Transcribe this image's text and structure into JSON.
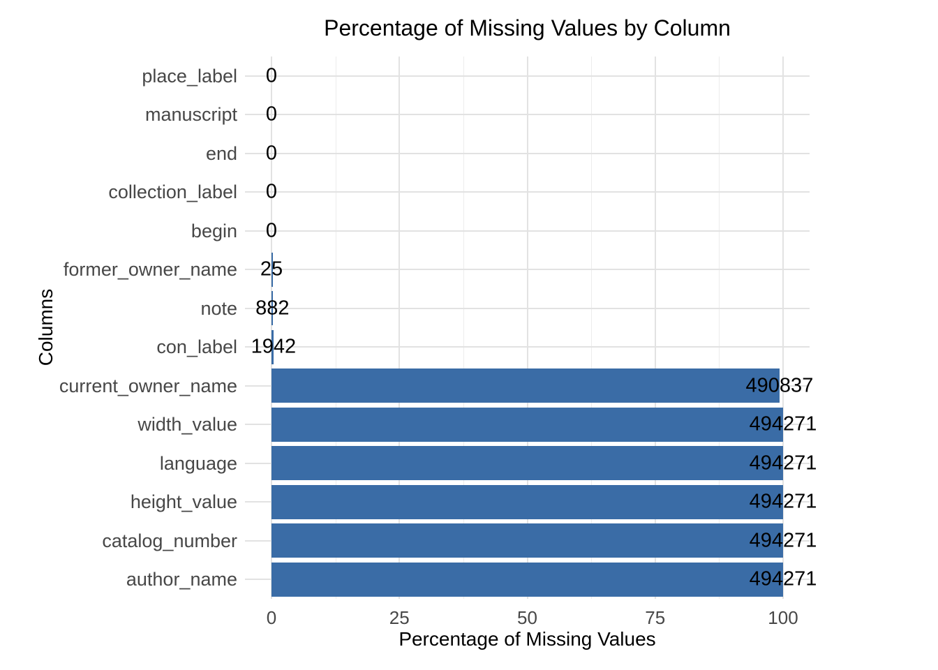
{
  "chart_data": {
    "type": "bar",
    "orientation": "horizontal",
    "title": "Percentage of Missing Values by Column",
    "xlabel": "Percentage of Missing Values",
    "ylabel": "Columns",
    "categories": [
      "place_label",
      "manuscript",
      "end",
      "collection_label",
      "begin",
      "former_owner_name",
      "note",
      "con_label",
      "current_owner_name",
      "width_value",
      "language",
      "height_value",
      "catalog_number",
      "author_name"
    ],
    "bar_values_pct": [
      0,
      0,
      0,
      0,
      0,
      0.01,
      0.18,
      0.39,
      99.31,
      100,
      100,
      100,
      100,
      100
    ],
    "bar_labels": [
      "0",
      "0",
      "0",
      "0",
      "0",
      "25",
      "882",
      "1942",
      "490837",
      "494271",
      "494271",
      "494271",
      "494271",
      "494271"
    ],
    "xlim": [
      0,
      100
    ],
    "x_ticks": [
      "0",
      "25",
      "50",
      "75",
      "100"
    ],
    "x_tick_values": [
      0,
      25,
      50,
      75,
      100
    ],
    "x_minor_tick_values": [
      12.5,
      37.5,
      62.5,
      87.5
    ],
    "grid": true,
    "legend": false,
    "colors": {
      "bar": "#3A6CA6",
      "grid_major": "#E2E2E2",
      "grid_minor": "#ECECEC",
      "axis_text": "#474747",
      "bar_label_text": "#000000",
      "title_text": "#000000",
      "background": "#FFFFFF"
    }
  }
}
